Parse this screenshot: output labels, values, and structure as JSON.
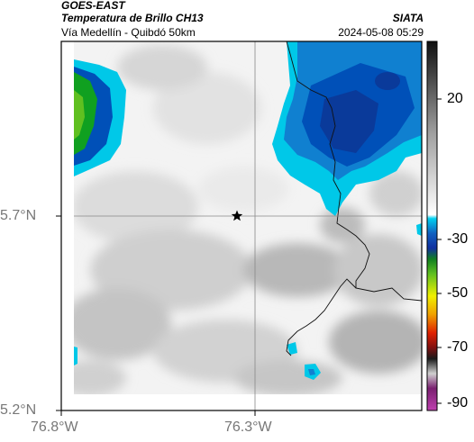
{
  "header": {
    "satellite": "GOES-EAST",
    "product": "Temperatura de Brillo CH13",
    "region": "Vía Medellín - Quibdó 50km",
    "organization": "SIATA",
    "datetime": "2024-05-08 05:29"
  },
  "axes": {
    "lat_ticks": [
      "5.7°N",
      "5.2°N"
    ],
    "lon_ticks": [
      "76.8°W",
      "76.3°W"
    ]
  },
  "colorbar": {
    "ticks": [
      "20",
      "-30",
      "-50",
      "-70",
      "-90"
    ],
    "colors": {
      "warm": "#f2f2f2",
      "grey": "#8a8a8a",
      "cyan": "#00c8e8",
      "blue": "#0050b8",
      "green": "#10a020",
      "yellow": "#e8e800",
      "red": "#d81800",
      "black": "#000000",
      "magenta": "#a040a0"
    }
  },
  "marker": {
    "icon": "star-icon"
  }
}
